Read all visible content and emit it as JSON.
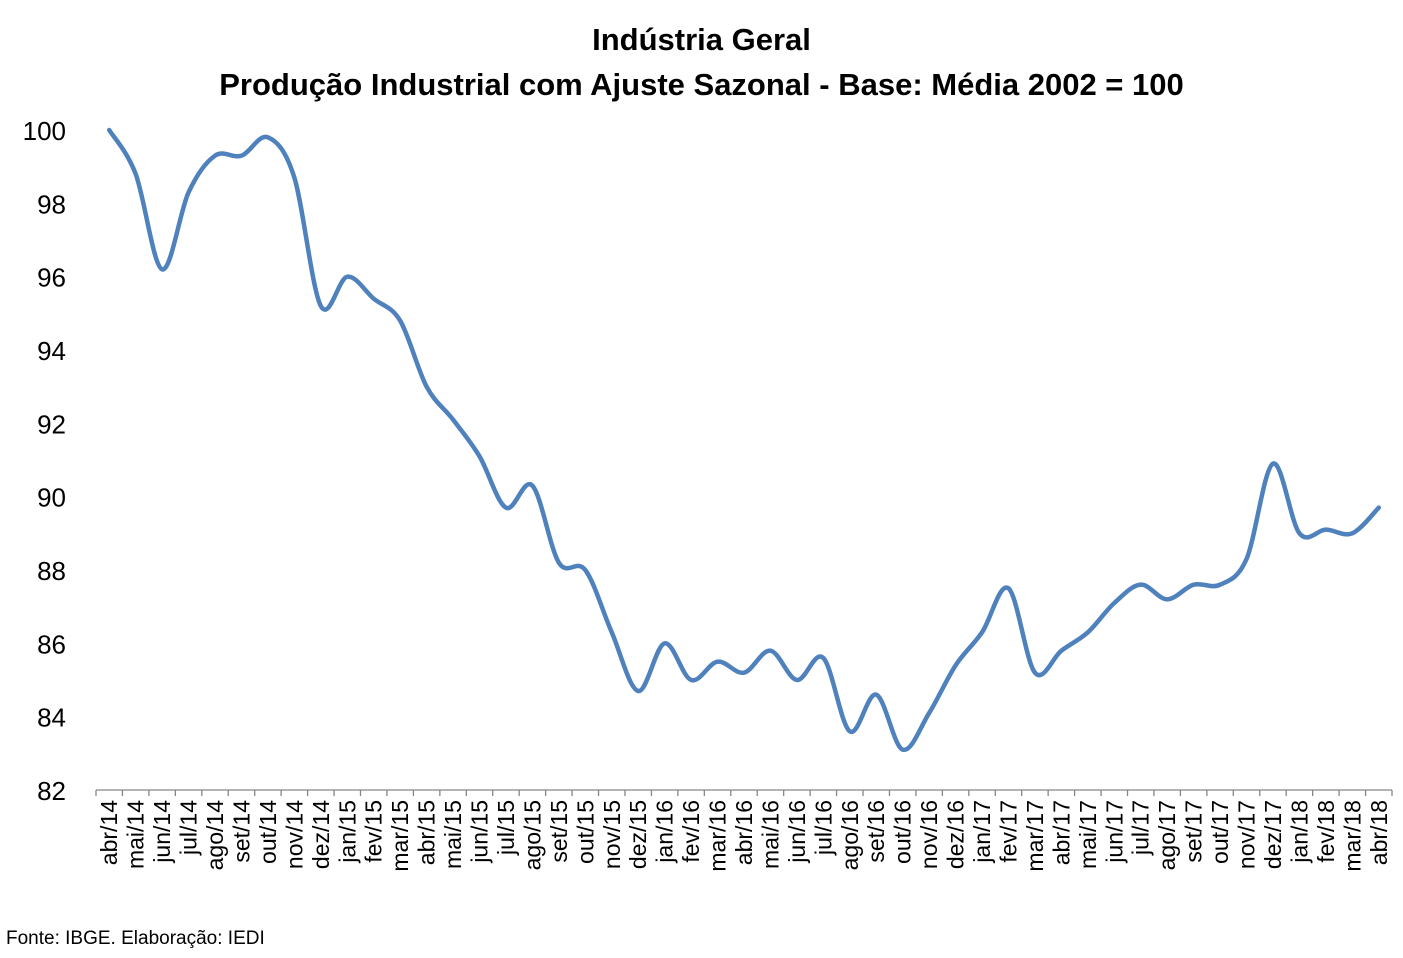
{
  "chart_data": {
    "type": "line",
    "title": "Indústria Geral",
    "subtitle": "Produção Industrial com Ajuste Sazonal - Base: Média 2002 = 100",
    "xlabel": "",
    "ylabel": "",
    "ylim": [
      82,
      100
    ],
    "yticks": [
      82,
      84,
      86,
      88,
      90,
      92,
      94,
      96,
      98,
      100
    ],
    "grid": false,
    "legend": "none",
    "color": "#4F81BD",
    "categories": [
      "abr/14",
      "mai/14",
      "jun/14",
      "jul/14",
      "ago/14",
      "set/14",
      "out/14",
      "nov/14",
      "dez/14",
      "jan/15",
      "fev/15",
      "mar/15",
      "abr/15",
      "mai/15",
      "jun/15",
      "jul/15",
      "ago/15",
      "set/15",
      "out/15",
      "nov/15",
      "dez/15",
      "jan/16",
      "fev/16",
      "mar/16",
      "abr/16",
      "mai/16",
      "jun/16",
      "jul/16",
      "ago/16",
      "set/16",
      "out/16",
      "nov/16",
      "dez/16",
      "jan/17",
      "fev/17",
      "mar/17",
      "abr/17",
      "mai/17",
      "jun/17",
      "jul/17",
      "ago/17",
      "set/17",
      "out/17",
      "nov/17",
      "dez/17",
      "jan/18",
      "fev/18",
      "mar/18",
      "abr/18"
    ],
    "series": [
      {
        "values": [
          100.0,
          98.8,
          96.2,
          98.3,
          99.3,
          99.3,
          99.8,
          98.7,
          95.2,
          96.0,
          95.4,
          94.8,
          93.0,
          92.1,
          91.1,
          89.7,
          90.3,
          88.2,
          88.0,
          86.3,
          84.7,
          86.0,
          85.0,
          85.5,
          85.2,
          85.8,
          85.0,
          85.6,
          83.6,
          84.6,
          83.1,
          84.1,
          85.4,
          86.3,
          87.5,
          85.2,
          85.8,
          86.3,
          87.1,
          87.6,
          87.2,
          87.6,
          87.6,
          88.3,
          90.9,
          89.0,
          89.1,
          89.0,
          89.7
        ]
      }
    ]
  },
  "footer": {
    "source": "Fonte: IBGE. Elaboração: IEDI"
  }
}
